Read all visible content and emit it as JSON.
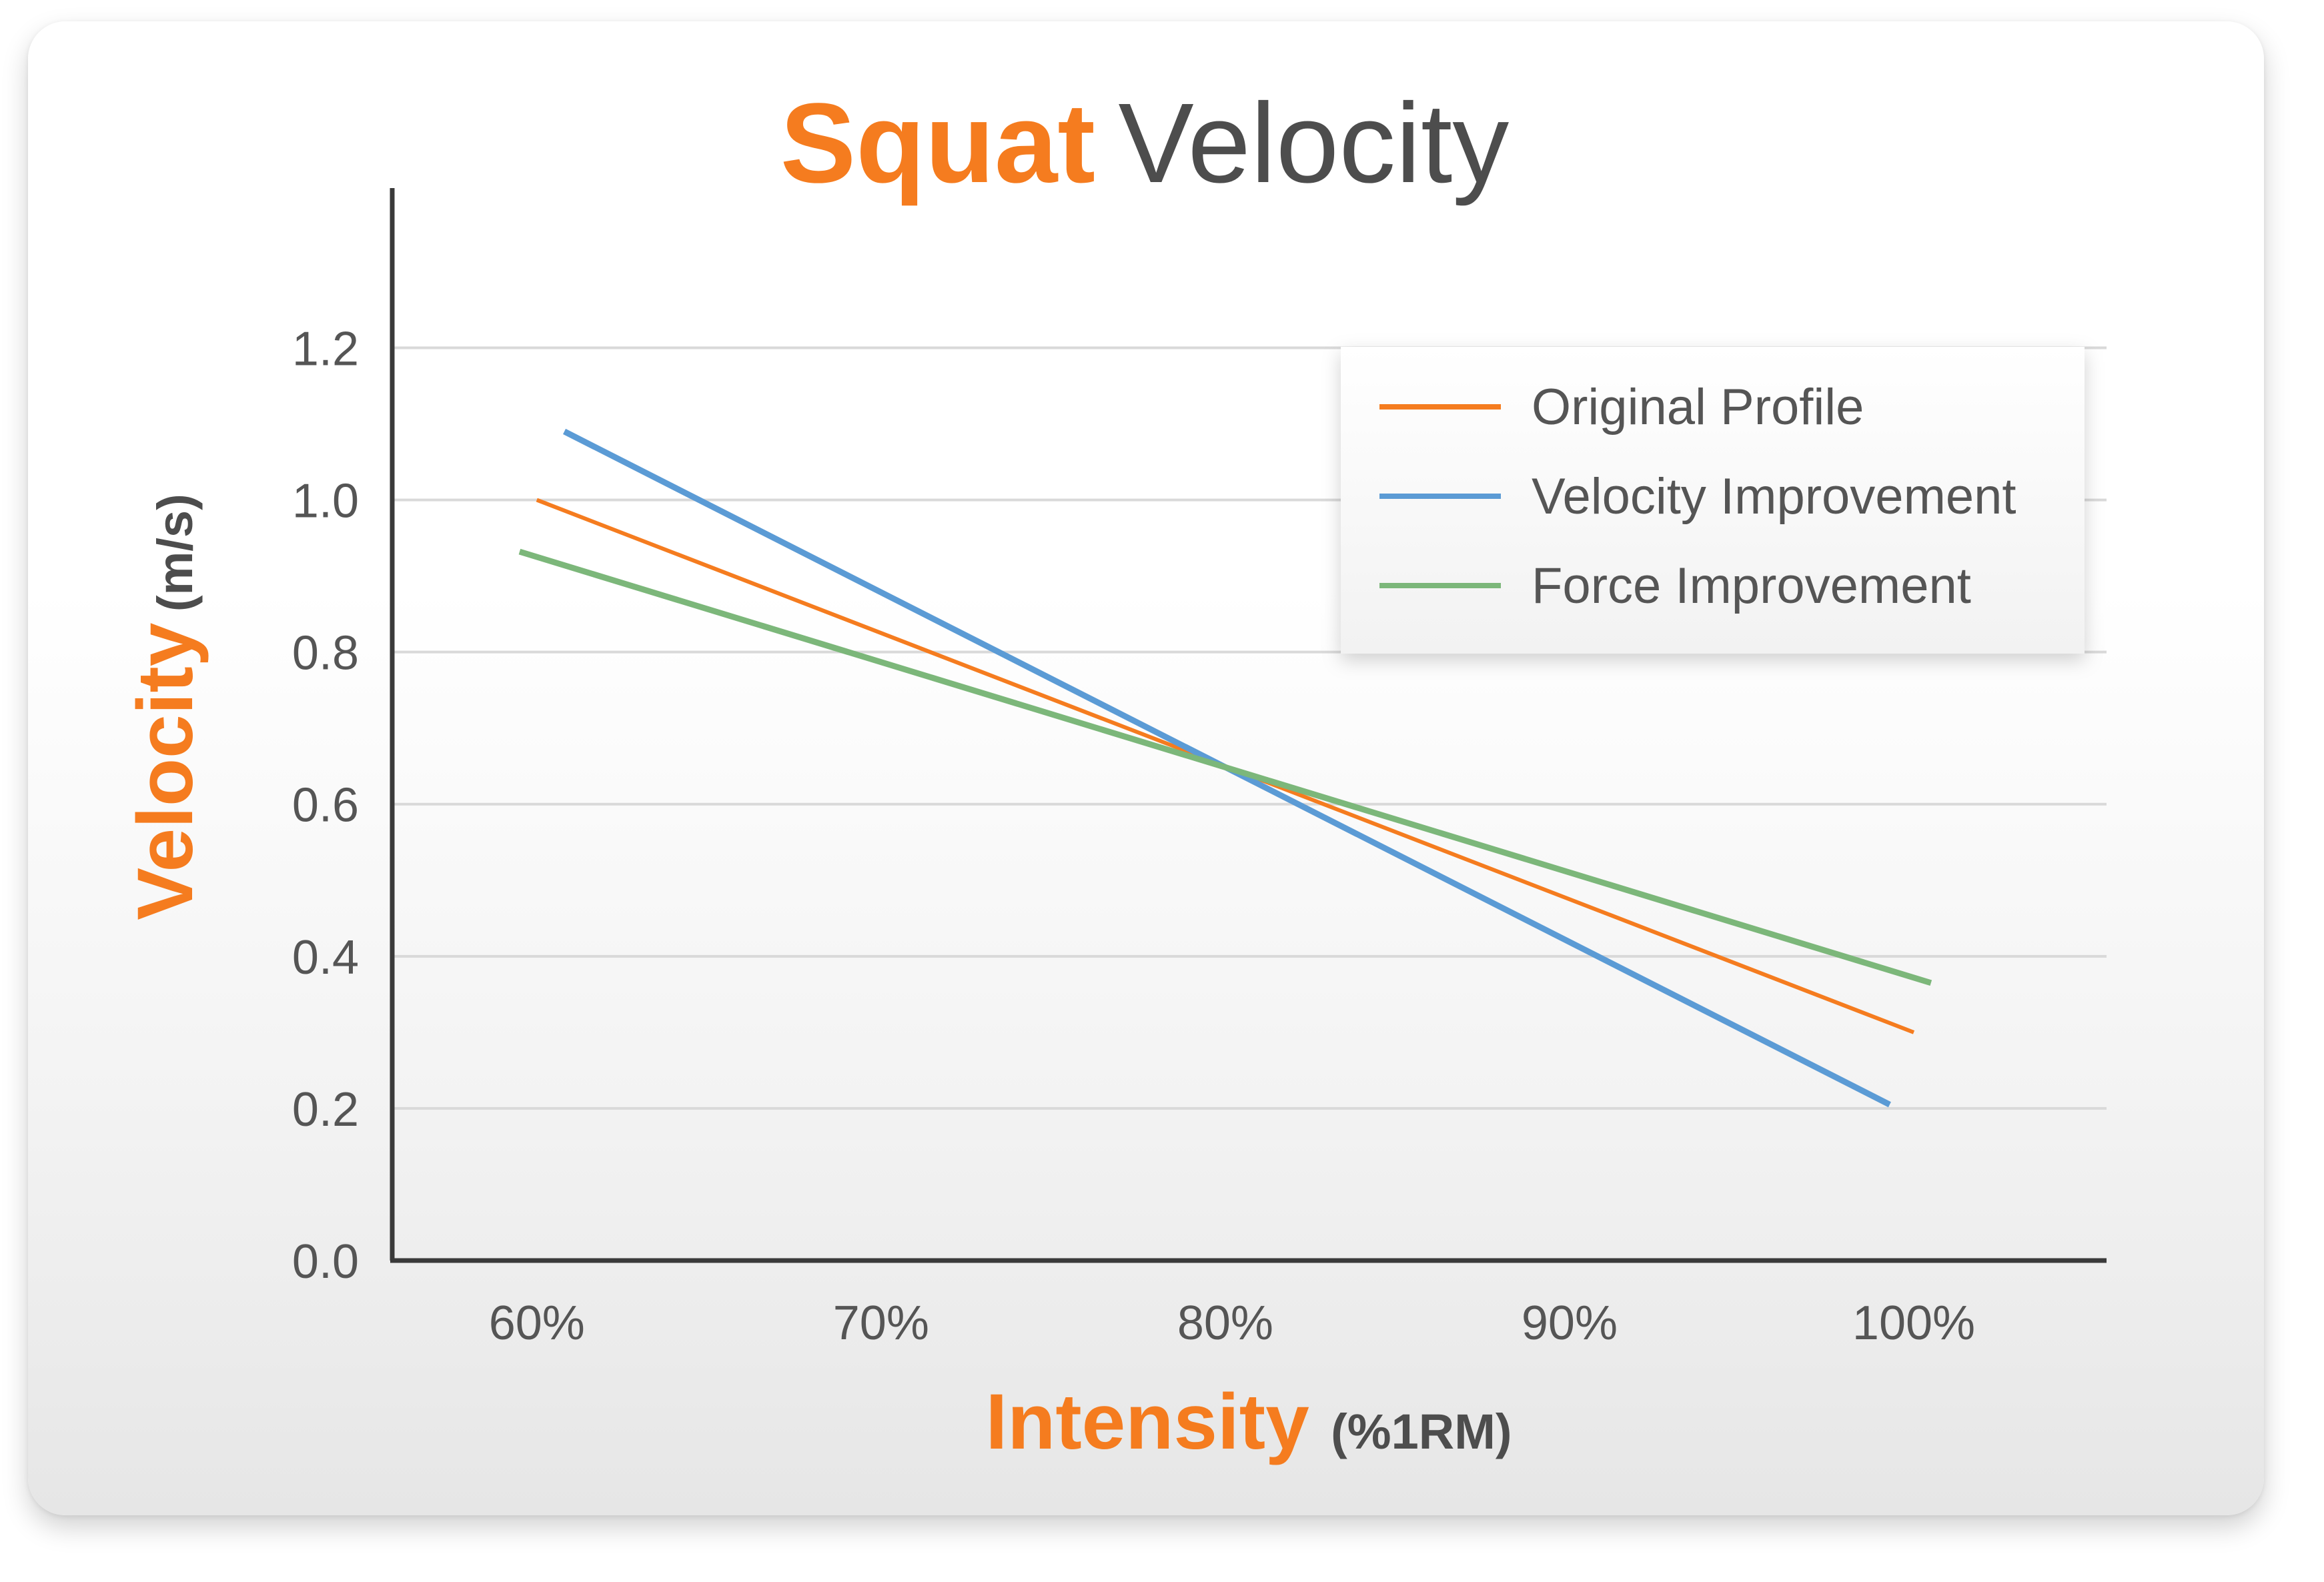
{
  "chart_data": {
    "type": "line",
    "title": {
      "highlight": "Squat",
      "rest": "Velocity"
    },
    "xlabel": {
      "main": "Intensity",
      "unit": "(%1RM)"
    },
    "ylabel": {
      "main": "Velocity",
      "unit": "(m/s)"
    },
    "x_ticks": [
      "60%",
      "70%",
      "80%",
      "90%",
      "100%"
    ],
    "y_ticks": [
      "0.0",
      "0.2",
      "0.4",
      "0.6",
      "0.8",
      "1.0",
      "1.2"
    ],
    "xlim": [
      55.8,
      105.6
    ],
    "ylim": [
      0,
      1.41
    ],
    "grid": true,
    "legend_position": "top-right",
    "series": [
      {
        "name": "Original Profile",
        "color": "#f57c1f",
        "points": [
          [
            60,
            1.0
          ],
          [
            100,
            0.3
          ]
        ]
      },
      {
        "name": "Velocity Improvement",
        "color": "#5b9bd5",
        "points": [
          [
            60.8,
            1.09
          ],
          [
            99.3,
            0.205
          ]
        ]
      },
      {
        "name": "Force Improvement",
        "color": "#7cb77a",
        "points": [
          [
            59.5,
            0.932
          ],
          [
            100.5,
            0.365
          ]
        ]
      }
    ],
    "colors": {
      "accent": "#f57c1f",
      "text_dark": "#4d4d4d",
      "axis": "#3a3a3a",
      "grid": "#d9d9d9"
    }
  }
}
